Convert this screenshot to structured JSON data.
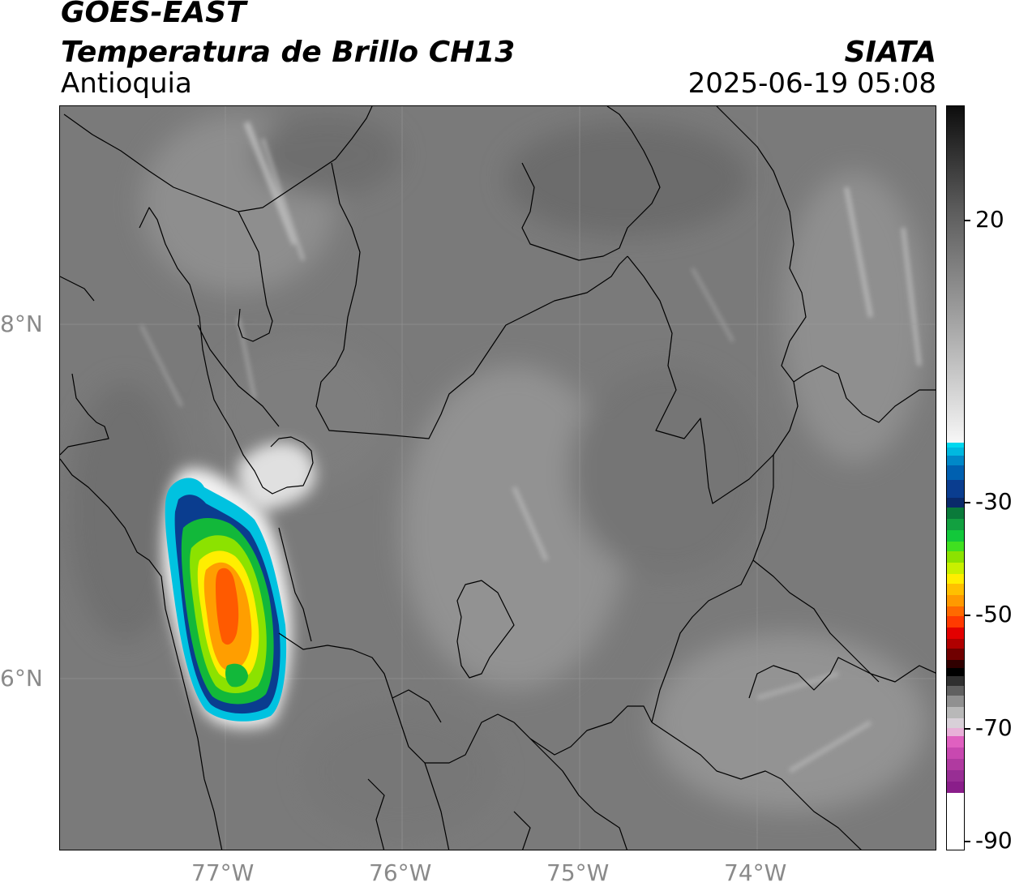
{
  "header": {
    "satellite": "GOES-EAST",
    "product": "Temperatura de Brillo CH13",
    "region": "Antioquia",
    "agency": "SIATA",
    "datetime": "2025-06-19 05:08"
  },
  "axes": {
    "lat_labels": [
      "8°N",
      "6°N"
    ],
    "lon_labels": [
      "77°W",
      "76°W",
      "75°W",
      "74°W"
    ]
  },
  "colorbar": {
    "tick_labels": [
      "20",
      "-30",
      "-50",
      "-70",
      "-90"
    ],
    "colors": {
      "dark_top": "#111111",
      "gray_mid": "#8c8c8c",
      "white": "#f5f5f5",
      "cyan": "#00d8ef",
      "blue": "#0a3d8f",
      "green": "#12b83a",
      "lime": "#8ce200",
      "yellow": "#ffee00",
      "orange": "#ff8c00",
      "red": "#e30000",
      "black": "#000000",
      "magenta": "#e060c0",
      "purple": "#8a1e8a"
    }
  }
}
